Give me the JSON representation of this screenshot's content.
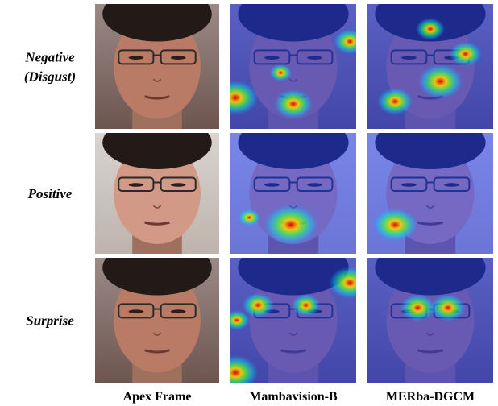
{
  "rows": [
    [
      "Negative",
      "(Disgust)"
    ],
    [
      "Positive"
    ],
    [
      "Surprise"
    ]
  ],
  "columns": [
    "Apex Frame",
    "Mambavision-B",
    "MERba-DGCM"
  ]
}
